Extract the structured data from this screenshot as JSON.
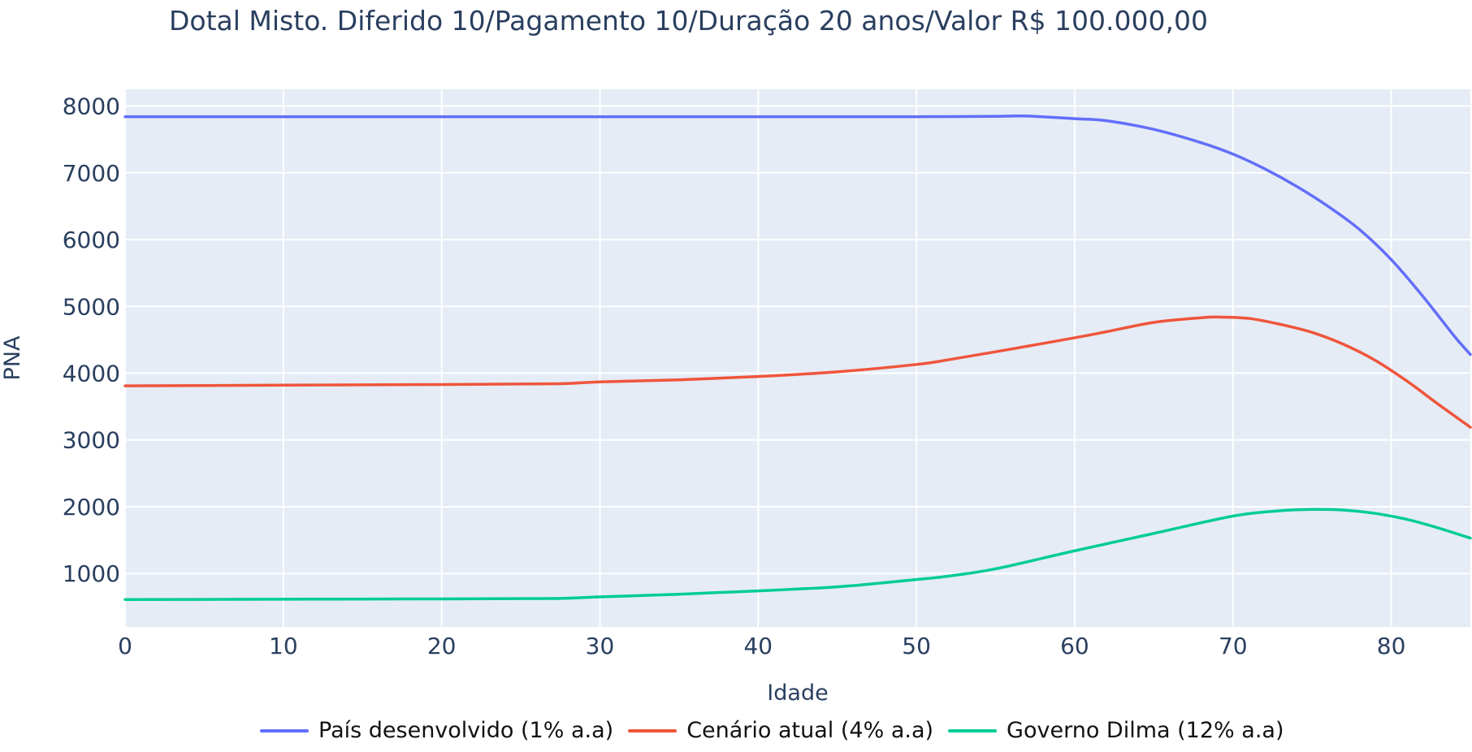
{
  "chart_data": {
    "type": "line",
    "title": "Dotal Misto. Diferido 10/Pagamento 10/Duração 20 anos/Valor R$ 100.000,00",
    "xlabel": "Idade",
    "ylabel": "PNA",
    "xlim": [
      0,
      85
    ],
    "ylim": [
      200,
      8250
    ],
    "xticks": [
      0,
      10,
      20,
      30,
      40,
      50,
      60,
      70,
      80
    ],
    "yticks": [
      1000,
      2000,
      3000,
      4000,
      5000,
      6000,
      7000,
      8000
    ],
    "grid": true,
    "legend_position": "bottom",
    "background_color": "#e5ecf6",
    "series": [
      {
        "name": "País desenvolvido (1% a.a)",
        "color": "#636efa",
        "x": [
          0,
          10,
          20,
          30,
          40,
          45,
          50,
          55,
          57,
          60,
          62,
          65,
          68,
          70,
          72,
          74,
          76,
          78,
          80,
          82,
          84,
          85
        ],
        "y": [
          7840,
          7840,
          7840,
          7840,
          7840,
          7840,
          7840,
          7845,
          7850,
          7810,
          7780,
          7650,
          7450,
          7280,
          7060,
          6800,
          6500,
          6150,
          5700,
          5150,
          4550,
          4280
        ]
      },
      {
        "name": "Cenário atual (4% a.a)",
        "color": "#ef553b",
        "x": [
          0,
          10,
          20,
          27,
          30,
          35,
          40,
          45,
          50,
          52,
          55,
          60,
          62,
          65,
          68,
          69,
          71,
          73,
          75,
          77,
          79,
          81,
          83,
          85
        ],
        "y": [
          3810,
          3820,
          3830,
          3840,
          3870,
          3900,
          3950,
          4020,
          4130,
          4200,
          4320,
          4530,
          4620,
          4760,
          4830,
          4840,
          4820,
          4730,
          4610,
          4430,
          4190,
          3880,
          3530,
          3190
        ]
      },
      {
        "name": "Governo Dilma (12% a.a)",
        "color": "#00cc96",
        "x": [
          0,
          10,
          20,
          27,
          30,
          35,
          40,
          45,
          50,
          52,
          55,
          60,
          65,
          70,
          73,
          75,
          77,
          79,
          81,
          83,
          85
        ],
        "y": [
          610,
          615,
          620,
          625,
          650,
          690,
          740,
          800,
          910,
          960,
          1070,
          1340,
          1600,
          1860,
          1940,
          1960,
          1950,
          1900,
          1810,
          1680,
          1530
        ]
      }
    ]
  }
}
